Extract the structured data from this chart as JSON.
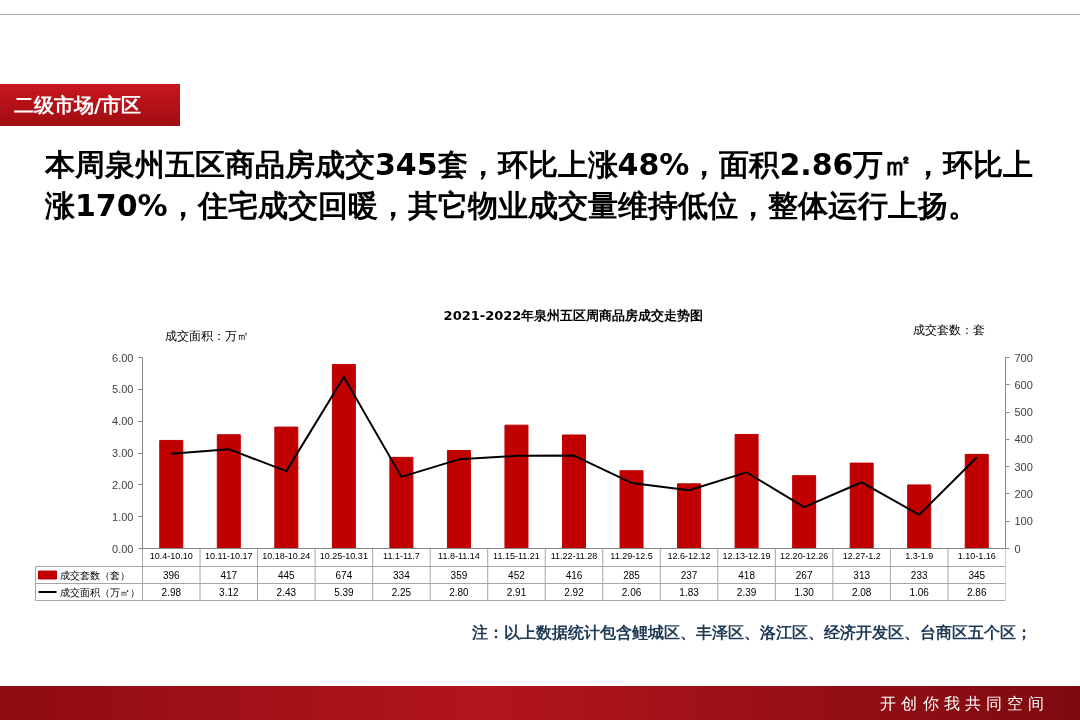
{
  "chart_data": {
    "type": "bar",
    "title": "2021-2022年泉州五区周商品房成交走势图",
    "ylabel": "成交面积：万㎡",
    "y2label": "成交套数：套",
    "annotations": [
      "二级市场/市区",
      "本周泉州五区商品房成交345套，环比上涨48%，面积2.86万㎡，环比上涨170%，住宅成交回暖，其它物业成交量维持低位，整体运行上扬。",
      "注：以上数据统计包含鲤城区、丰泽区、洛江区、经济开发区、台商区五个区；",
      "开 创 你 我 共 同 空 间"
    ],
    "categories": [
      "10.4-10.10",
      "10.11-10.17",
      "10.18-10.24",
      "10.25-10.31",
      "11.1-11.7",
      "11.8-11.14",
      "11.15-11.21",
      "11.22-11.28",
      "11.29-12.5",
      "12.6-12.12",
      "12.13-12.19",
      "12.20-12.26",
      "12.27-1.2",
      "1.3-1.9",
      "1.10-1.16"
    ],
    "series": [
      {
        "name": "成交套数（套）",
        "axis": "y2",
        "color": "#c00000",
        "values": [
          396,
          417,
          445,
          674,
          334,
          359,
          452,
          416,
          285,
          237,
          418,
          267,
          313,
          233,
          345
        ],
        "value_labels": [
          "396",
          "417",
          "445",
          "674",
          "334",
          "359",
          "452",
          "416",
          "285",
          "237",
          "418",
          "267",
          "313",
          "233",
          "345"
        ]
      },
      {
        "name": "成交面积（万㎡）",
        "type": "line",
        "color": "#000000",
        "values": [
          2.98,
          3.12,
          2.43,
          5.39,
          2.25,
          2.8,
          2.91,
          2.92,
          2.06,
          1.83,
          2.39,
          1.3,
          2.08,
          1.06,
          2.86
        ],
        "value_labels": [
          "2.98",
          "3.12",
          "2.43",
          "5.39",
          "2.25",
          "2.80",
          "2.91",
          "2.92",
          "2.06",
          "1.83",
          "2.39",
          "1.30",
          "2.08",
          "1.06",
          "2.86"
        ]
      }
    ],
    "ylim": [
      0,
      6
    ],
    "yticks": [
      {
        "value": 0,
        "label": "0.00"
      },
      {
        "value": 1,
        "label": "1.00"
      },
      {
        "value": 2,
        "label": "2.00"
      },
      {
        "value": 3,
        "label": "3.00"
      },
      {
        "value": 4,
        "label": "4.00"
      },
      {
        "value": 5,
        "label": "5.00"
      },
      {
        "value": 6,
        "label": "6.00"
      }
    ],
    "y2lim": [
      0,
      700
    ],
    "y2ticks": [
      0,
      100,
      200,
      300,
      400,
      500,
      600,
      700
    ],
    "legend": "bottom"
  }
}
